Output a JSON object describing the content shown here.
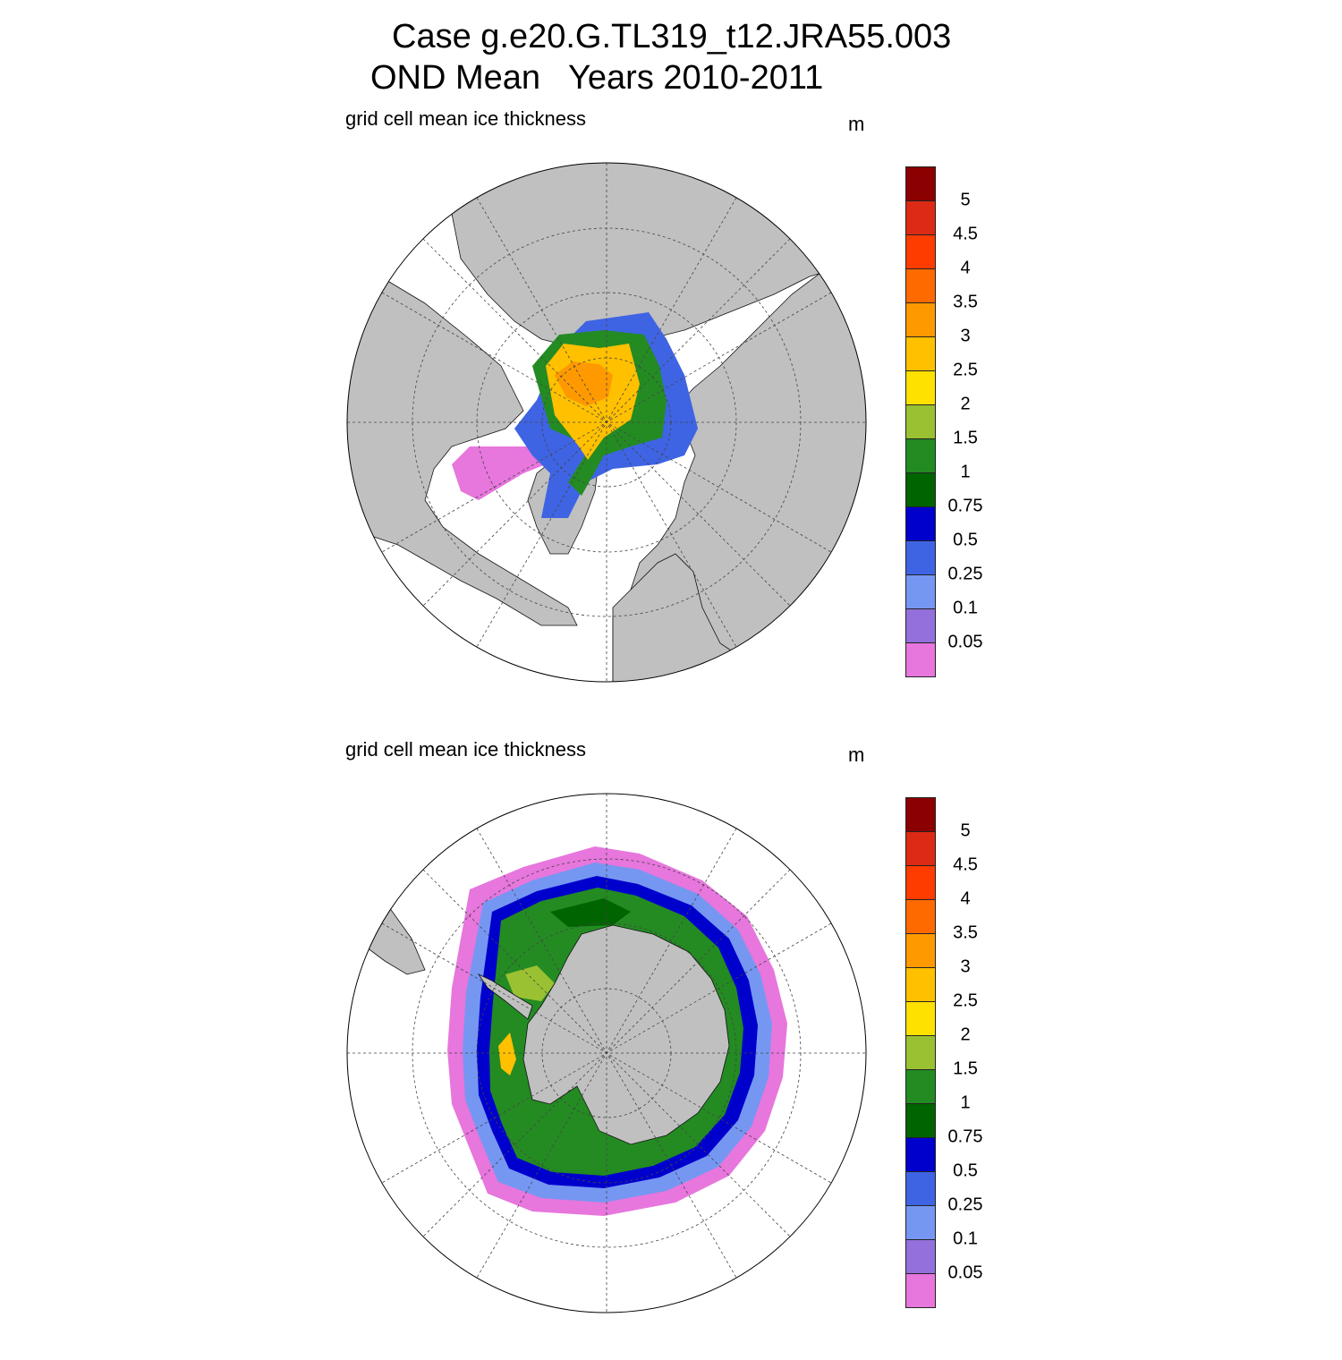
{
  "header": {
    "title_line1": "Case g.e20.G.TL319_t12.JRA55.003",
    "title_line2": "OND Mean   Years 2010-2011"
  },
  "panels": [
    {
      "id": "north",
      "variable_label": "grid cell mean ice thickness",
      "units": "m",
      "hemisphere": "Northern"
    },
    {
      "id": "south",
      "variable_label": "grid cell mean ice thickness",
      "units": "m",
      "hemisphere": "Southern"
    }
  ],
  "colorbar": {
    "tick_labels": [
      "5",
      "4.5",
      "4",
      "3.5",
      "3",
      "2.5",
      "2",
      "1.5",
      "1",
      "0.75",
      "0.5",
      "0.25",
      "0.1",
      "0.05"
    ],
    "colors": [
      "#8b0000",
      "#dc2a14",
      "#ff3c00",
      "#ff6a00",
      "#ff9900",
      "#ffc000",
      "#ffe100",
      "#9ac132",
      "#238b22",
      "#006400",
      "#0000cd",
      "#3e64e3",
      "#7597f2",
      "#9370db",
      "#e776dd"
    ]
  },
  "colors": {
    "land": "#c0c0c0",
    "ocean": "#ffffff",
    "grid": "#444444"
  }
}
